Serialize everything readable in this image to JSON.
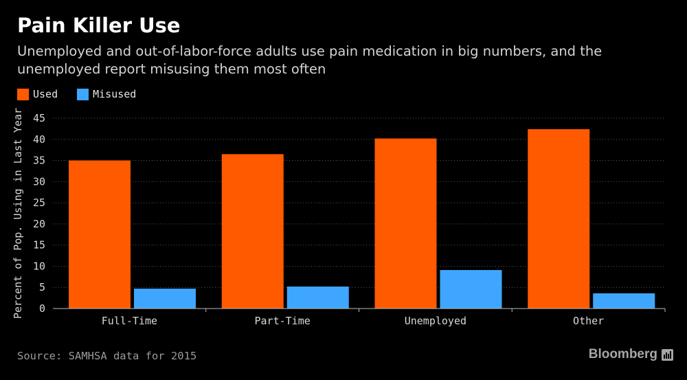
{
  "header": {
    "title": "Pain Killer Use",
    "subtitle": "Unemployed and out-of-labor-force adults use pain medication in big numbers, and the unemployed report misusing them most often"
  },
  "footer": {
    "source": "Source: SAMHSA data for 2015",
    "brand": "Bloomberg"
  },
  "chart_data": {
    "type": "bar",
    "title": "Pain Killer Use",
    "subtitle": "Unemployed and out-of-labor-force adults use pain medication in big numbers, and the unemployed report misusing them most often",
    "categories": [
      "Full-Time",
      "Part-Time",
      "Unemployed",
      "Other"
    ],
    "series": [
      {
        "name": "Used",
        "color": "#ff5a00",
        "values": [
          35.0,
          36.5,
          40.2,
          42.4
        ]
      },
      {
        "name": "Misused",
        "color": "#3ea6ff",
        "values": [
          4.7,
          5.2,
          9.1,
          3.6
        ]
      }
    ],
    "xlabel": "",
    "ylabel": "Percent of Pop. Using in Last Year",
    "ylim": [
      0,
      45
    ],
    "yticks": [
      0,
      5,
      10,
      15,
      20,
      25,
      30,
      35,
      40,
      45
    ],
    "grid": true,
    "legend": "top-left"
  }
}
